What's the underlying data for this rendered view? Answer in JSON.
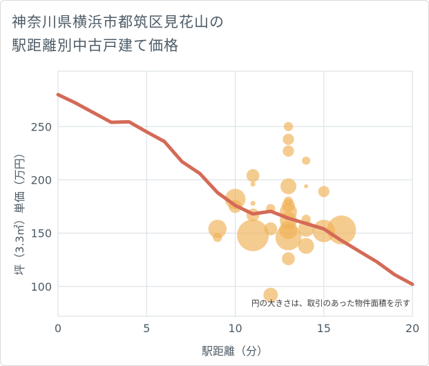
{
  "chart_data": {
    "type": "scatter",
    "title_line1": "神奈川県横浜市都筑区見花山の",
    "title_line2": "駅距離別中古戸建て価格",
    "xlabel": "駅距離（分）",
    "ylabel": "坪（3.3㎡）単価（万円）",
    "note": "円の大きさは、取引のあった物件面積を示す",
    "xlim": [
      0,
      20
    ],
    "ylim": [
      72,
      302
    ],
    "x_ticks": [
      0,
      5,
      10,
      15,
      20
    ],
    "y_ticks": [
      100,
      150,
      200,
      250
    ],
    "grid": true,
    "colors": {
      "bubble": "#f0b054",
      "line": "#d46a57",
      "grid": "#d5dde3"
    },
    "points": [
      {
        "x": 9,
        "y": 154,
        "size": 4
      },
      {
        "x": 9,
        "y": 146,
        "size": 1
      },
      {
        "x": 10,
        "y": 182,
        "size": 5
      },
      {
        "x": 10,
        "y": 175,
        "size": 2
      },
      {
        "x": 11,
        "y": 204,
        "size": 2
      },
      {
        "x": 11,
        "y": 196,
        "size": 0.3
      },
      {
        "x": 11,
        "y": 178,
        "size": 0.3
      },
      {
        "x": 11,
        "y": 167,
        "size": 2
      },
      {
        "x": 11,
        "y": 148,
        "size": 12
      },
      {
        "x": 12,
        "y": 173,
        "size": 1
      },
      {
        "x": 12,
        "y": 154,
        "size": 2
      },
      {
        "x": 12,
        "y": 92,
        "size": 2.5
      },
      {
        "x": 13,
        "y": 250,
        "size": 1
      },
      {
        "x": 13,
        "y": 238,
        "size": 1.5
      },
      {
        "x": 13,
        "y": 227,
        "size": 1.5
      },
      {
        "x": 13,
        "y": 194,
        "size": 3
      },
      {
        "x": 13,
        "y": 180,
        "size": 1
      },
      {
        "x": 13,
        "y": 176,
        "size": 2
      },
      {
        "x": 13,
        "y": 170,
        "size": 3.5
      },
      {
        "x": 13,
        "y": 162,
        "size": 3.5
      },
      {
        "x": 13,
        "y": 153,
        "size": 4
      },
      {
        "x": 13,
        "y": 146,
        "size": 8
      },
      {
        "x": 13,
        "y": 126,
        "size": 2
      },
      {
        "x": 14,
        "y": 218,
        "size": 0.8
      },
      {
        "x": 14,
        "y": 194,
        "size": 0.2
      },
      {
        "x": 14,
        "y": 163,
        "size": 1
      },
      {
        "x": 14,
        "y": 154,
        "size": 3
      },
      {
        "x": 14,
        "y": 138,
        "size": 3
      },
      {
        "x": 15,
        "y": 189,
        "size": 1.5
      },
      {
        "x": 15,
        "y": 152,
        "size": 6
      },
      {
        "x": 16,
        "y": 153,
        "size": 10
      }
    ],
    "trend_line": {
      "name": "",
      "x": [
        0,
        1,
        2,
        3,
        4,
        5,
        6,
        7,
        8,
        9,
        10,
        11,
        12,
        13,
        14,
        15,
        16,
        17,
        18,
        19,
        20
      ],
      "y": [
        280,
        272,
        263,
        254,
        254.5,
        245,
        236,
        217,
        206,
        188,
        176,
        168,
        170.5,
        164,
        159,
        154,
        143,
        133,
        123,
        111,
        102
      ]
    }
  }
}
